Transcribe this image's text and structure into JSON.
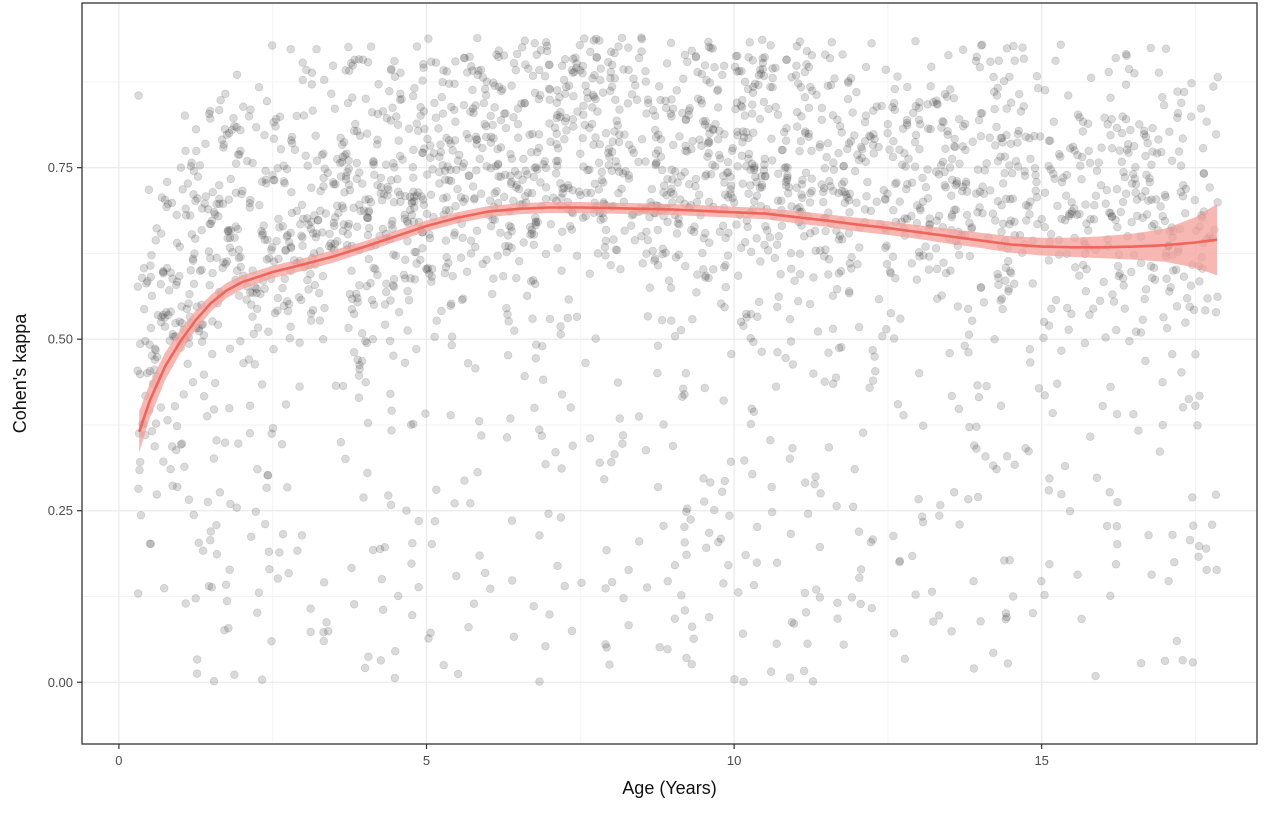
{
  "chart_data": {
    "type": "scatter",
    "title": "",
    "xlabel": "Age (Years)",
    "ylabel": "Cohen's kappa",
    "xlim": [
      -0.6,
      18.5
    ],
    "ylim": [
      -0.09,
      0.99
    ],
    "x_ticks": [
      0,
      5,
      10,
      15
    ],
    "x_tick_labels": [
      "0",
      "5",
      "10",
      "15"
    ],
    "y_ticks": [
      0,
      0.25,
      0.5,
      0.75
    ],
    "y_tick_labels": [
      "0.00",
      "0.25",
      "0.50",
      "0.75"
    ],
    "grid": true,
    "legend": "none",
    "points": {
      "count": 2600,
      "x_range": [
        0.3,
        17.9
      ],
      "y_range": [
        0.0,
        0.94
      ],
      "color": "#333333",
      "opacity": 0.18
    },
    "smooth": {
      "color": "#f0645a",
      "band_color": "#f4a09a",
      "x": [
        0.33,
        0.5,
        0.75,
        1.0,
        1.25,
        1.5,
        1.75,
        2.0,
        2.5,
        3.0,
        3.5,
        4.0,
        4.5,
        5.0,
        5.5,
        6.0,
        6.5,
        7.0,
        7.5,
        8.0,
        8.5,
        9.0,
        9.5,
        10.0,
        10.5,
        11.0,
        11.5,
        12.0,
        12.5,
        13.0,
        13.5,
        14.0,
        14.5,
        15.0,
        15.5,
        16.0,
        16.5,
        17.0,
        17.5,
        17.85
      ],
      "y": [
        0.365,
        0.41,
        0.46,
        0.497,
        0.528,
        0.553,
        0.571,
        0.583,
        0.598,
        0.609,
        0.621,
        0.635,
        0.65,
        0.665,
        0.677,
        0.686,
        0.69,
        0.692,
        0.692,
        0.691,
        0.69,
        0.689,
        0.687,
        0.685,
        0.683,
        0.678,
        0.673,
        0.667,
        0.662,
        0.656,
        0.65,
        0.644,
        0.638,
        0.635,
        0.634,
        0.634,
        0.635,
        0.637,
        0.641,
        0.645
      ],
      "se": [
        0.03,
        0.025,
        0.02,
        0.017,
        0.014,
        0.012,
        0.011,
        0.01,
        0.009,
        0.009,
        0.009,
        0.008,
        0.008,
        0.008,
        0.008,
        0.008,
        0.008,
        0.008,
        0.008,
        0.008,
        0.008,
        0.008,
        0.008,
        0.008,
        0.008,
        0.009,
        0.009,
        0.01,
        0.01,
        0.01,
        0.011,
        0.011,
        0.012,
        0.013,
        0.014,
        0.016,
        0.019,
        0.024,
        0.037,
        0.052
      ]
    },
    "colors": {
      "panel_border": "#333333",
      "grid_major": "#ebebeb",
      "grid_minor": "#f3f3f3",
      "tick": "#333333"
    }
  }
}
